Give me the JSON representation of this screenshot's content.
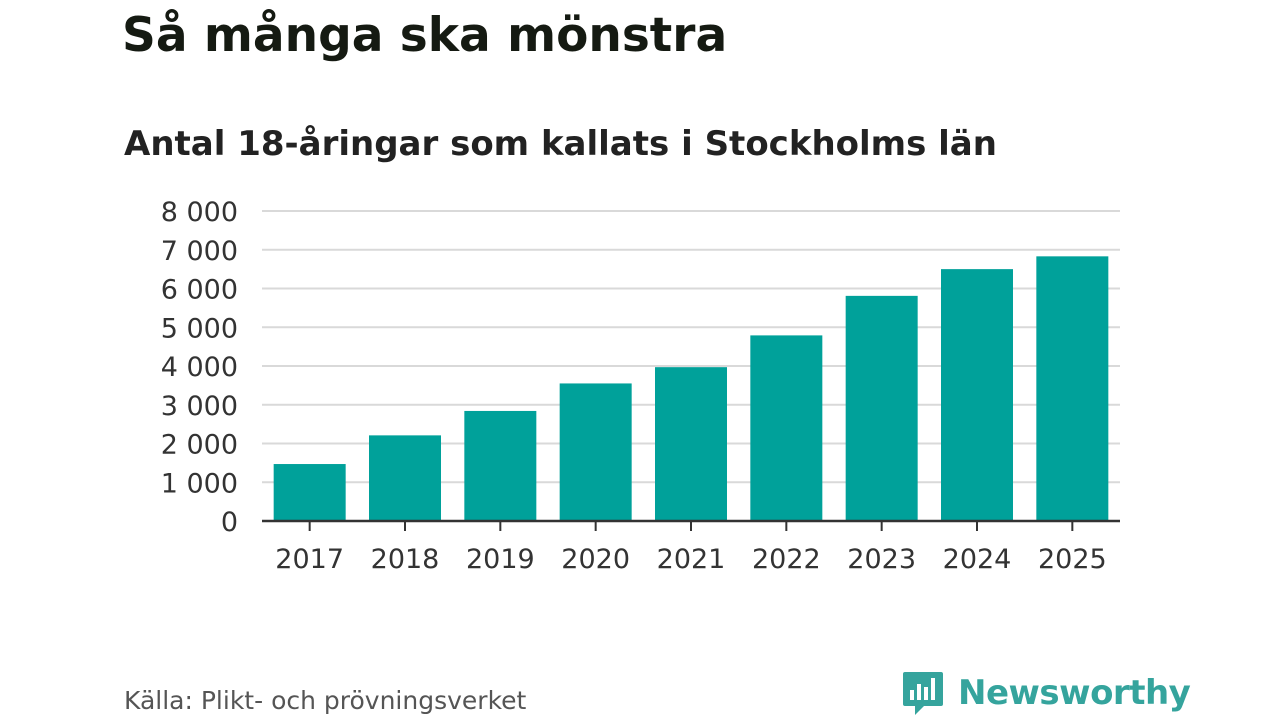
{
  "header": {
    "title": "Så många ska mönstra",
    "subtitle": "Antal 18-åringar som kallats i Stockholms län"
  },
  "footer": {
    "source": "Källa: Plikt- och prövningsverket",
    "brand": "Newsworthy",
    "brand_icon": "bar-chart-speech-bubble-icon"
  },
  "colors": {
    "bar": "#00a19a",
    "grid": "#d9d9d9",
    "axis": "#333333",
    "brand": "#35a49d"
  },
  "chart_data": {
    "type": "bar",
    "title": "Så många ska mönstra",
    "subtitle": "Antal 18-åringar som kallats i Stockholms län",
    "xlabel": "",
    "ylabel": "",
    "categories": [
      "2017",
      "2018",
      "2019",
      "2020",
      "2021",
      "2022",
      "2023",
      "2024",
      "2025"
    ],
    "values": [
      1470,
      2210,
      2840,
      3550,
      3970,
      4790,
      5810,
      6500,
      6830
    ],
    "ylim": [
      0,
      8000
    ],
    "yticks": [
      0,
      1000,
      2000,
      3000,
      4000,
      5000,
      6000,
      7000,
      8000
    ],
    "ytick_labels": [
      "0",
      "1 000",
      "2 000",
      "3 000",
      "4 000",
      "5 000",
      "6 000",
      "7 000",
      "8 000"
    ],
    "grid": true,
    "legend": "none"
  }
}
